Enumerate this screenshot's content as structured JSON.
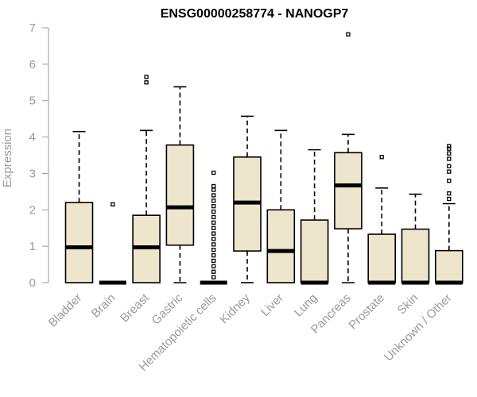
{
  "chart_data": {
    "type": "boxplot",
    "title": "ENSG00000258774 - NANOGP7",
    "xlabel": "",
    "ylabel": "Expression",
    "ylim": [
      0,
      7
    ],
    "yticks": [
      0,
      1,
      2,
      3,
      4,
      5,
      6,
      7
    ],
    "box_color": "#ede6cc",
    "categories": [
      "Bladder",
      "Brain",
      "Breast",
      "Gastric",
      "Hematopoietic cells",
      "Kidney",
      "Liver",
      "Lung",
      "Pancreas",
      "Prostate",
      "Skin",
      "Unknown / Other"
    ],
    "boxes": [
      {
        "min": 0,
        "q1": 0,
        "median": 0.97,
        "q3": 2.2,
        "max": 4.15,
        "outliers": []
      },
      {
        "min": 0,
        "q1": 0,
        "median": 0,
        "q3": 0,
        "max": 0,
        "outliers": [
          2.15
        ]
      },
      {
        "min": 0,
        "q1": 0,
        "median": 0.97,
        "q3": 1.85,
        "max": 4.18,
        "outliers": [
          5.5,
          5.65
        ]
      },
      {
        "min": 0,
        "q1": 1.03,
        "median": 2.07,
        "q3": 3.78,
        "max": 5.38,
        "outliers": []
      },
      {
        "min": 0,
        "q1": 0,
        "median": 0,
        "q3": 0,
        "max": 0,
        "outliers": [
          0.15,
          0.3,
          0.45,
          0.6,
          0.75,
          0.9,
          1.05,
          1.2,
          1.35,
          1.5,
          1.65,
          1.8,
          1.95,
          2.1,
          2.25,
          2.4,
          2.55,
          2.65,
          3.02
        ]
      },
      {
        "min": 0,
        "q1": 0.87,
        "median": 2.2,
        "q3": 3.45,
        "max": 4.57,
        "outliers": []
      },
      {
        "min": 0,
        "q1": 0,
        "median": 0.87,
        "q3": 2.0,
        "max": 4.18,
        "outliers": []
      },
      {
        "min": 0,
        "q1": 0,
        "median": 0,
        "q3": 1.72,
        "max": 3.65,
        "outliers": []
      },
      {
        "min": 0,
        "q1": 1.48,
        "median": 2.67,
        "q3": 3.57,
        "max": 4.07,
        "outliers": [
          6.82
        ]
      },
      {
        "min": 0,
        "q1": 0,
        "median": 0,
        "q3": 1.33,
        "max": 2.6,
        "outliers": [
          3.45
        ]
      },
      {
        "min": 0,
        "q1": 0,
        "median": 0,
        "q3": 1.47,
        "max": 2.43,
        "outliers": []
      },
      {
        "min": 0,
        "q1": 0,
        "median": 0,
        "q3": 0.88,
        "max": 2.17,
        "outliers": [
          2.3,
          2.45,
          2.8,
          3.05,
          3.2,
          3.4,
          3.55,
          3.68,
          3.75
        ]
      }
    ]
  }
}
